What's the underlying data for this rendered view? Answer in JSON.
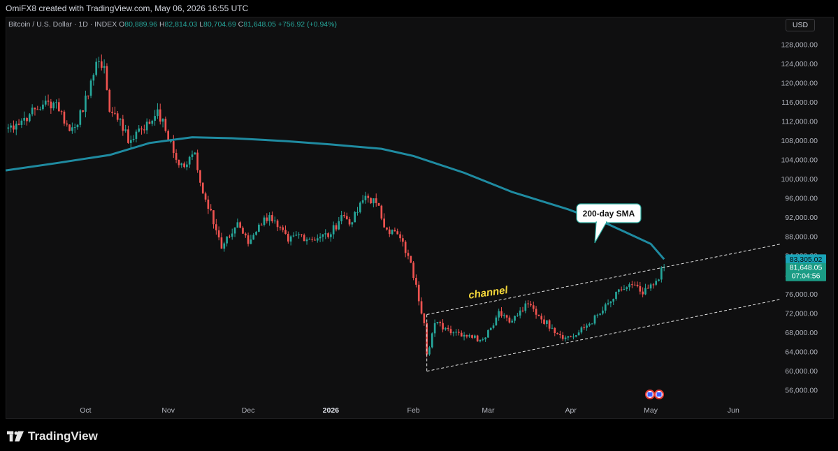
{
  "header": {
    "attribution": "OmiFX8 created with TradingView.com, May 06, 2026 16:55 UTC"
  },
  "legend": {
    "symbol": "Bitcoin / U.S. Dollar · 1D · INDEX",
    "o_label": "O",
    "o": "80,889.96",
    "h_label": "H",
    "h": "82,814.03",
    "l_label": "L",
    "l": "80,704.69",
    "c_label": "C",
    "c": "81,648.05",
    "change": "+756.92 (+0.94%)"
  },
  "currency": "USD",
  "price_tags": {
    "sma": "83,305.02",
    "last": "81,648.05",
    "countdown": "07:04:56"
  },
  "annotations": {
    "callout": "200-day SMA",
    "channel": "channel"
  },
  "brand": {
    "name": "TradingView"
  },
  "colors": {
    "up": "#26a69a",
    "down": "#ef5350",
    "sma": "#1f8ba1",
    "background": "#0f0f10",
    "channel_label": "#f0d43a"
  },
  "chart_data": {
    "type": "candlestick",
    "y_axis": {
      "ticks": [
        128000,
        124000,
        120000,
        116000,
        112000,
        108000,
        104000,
        100000,
        96000,
        92000,
        88000,
        84000,
        80000,
        76000,
        72000,
        68000,
        64000,
        60000,
        56000
      ],
      "tick_labels": [
        "128,000.00",
        "124,000.00",
        "120,000.00",
        "116,000.00",
        "112,000.00",
        "108,000.00",
        "104,000.00",
        "100,000.00",
        "96,000.00",
        "92,000.00",
        "88,000.00",
        "84,000.00",
        "80,000.00",
        "76,000.00",
        "72,000.00",
        "68,000.00",
        "64,000.00",
        "60,000.00",
        "56,000.00"
      ],
      "range": [
        54000,
        130000
      ]
    },
    "x_axis": {
      "range": [
        "2025-09-01",
        "2026-06-19"
      ],
      "ticks": [
        {
          "label": "Oct",
          "date": "2025-10-01",
          "bold": false
        },
        {
          "label": "Nov",
          "date": "2025-11-01",
          "bold": false
        },
        {
          "label": "Dec",
          "date": "2025-12-01",
          "bold": false
        },
        {
          "label": "2026",
          "date": "2026-01-01",
          "bold": true
        },
        {
          "label": "Feb",
          "date": "2026-02-01",
          "bold": false
        },
        {
          "label": "Mar",
          "date": "2026-03-01",
          "bold": false
        },
        {
          "label": "Apr",
          "date": "2026-04-01",
          "bold": false
        },
        {
          "label": "May",
          "date": "2026-05-01",
          "bold": false
        },
        {
          "label": "Jun",
          "date": "2026-06-01",
          "bold": false
        }
      ]
    },
    "price_anchors": [
      [
        "2025-09-01",
        110500
      ],
      [
        "2025-09-05",
        111500
      ],
      [
        "2025-09-10",
        113500
      ],
      [
        "2025-09-15",
        115500
      ],
      [
        "2025-09-20",
        116000
      ],
      [
        "2025-09-25",
        110000
      ],
      [
        "2025-09-30",
        114000
      ],
      [
        "2025-10-03",
        120500
      ],
      [
        "2025-10-06",
        124500
      ],
      [
        "2025-10-08",
        123500
      ],
      [
        "2025-10-10",
        114000
      ],
      [
        "2025-10-14",
        112500
      ],
      [
        "2025-10-17",
        107500
      ],
      [
        "2025-10-21",
        110500
      ],
      [
        "2025-10-25",
        111500
      ],
      [
        "2025-10-28",
        114500
      ],
      [
        "2025-10-31",
        110000
      ],
      [
        "2025-11-04",
        104000
      ],
      [
        "2025-11-07",
        102500
      ],
      [
        "2025-11-11",
        105500
      ],
      [
        "2025-11-14",
        97000
      ],
      [
        "2025-11-17",
        93500
      ],
      [
        "2025-11-21",
        85500
      ],
      [
        "2025-11-24",
        88000
      ],
      [
        "2025-11-27",
        91000
      ],
      [
        "2025-12-01",
        86500
      ],
      [
        "2025-12-05",
        90500
      ],
      [
        "2025-12-09",
        92500
      ],
      [
        "2025-12-12",
        90000
      ],
      [
        "2025-12-16",
        87000
      ],
      [
        "2025-12-20",
        88500
      ],
      [
        "2025-12-24",
        87500
      ],
      [
        "2025-12-28",
        88000
      ],
      [
        "2026-01-01",
        88500
      ],
      [
        "2026-01-05",
        92500
      ],
      [
        "2026-01-09",
        91000
      ],
      [
        "2026-01-14",
        96500
      ],
      [
        "2026-01-18",
        95000
      ],
      [
        "2026-01-22",
        89500
      ],
      [
        "2026-01-26",
        88500
      ],
      [
        "2026-01-30",
        84000
      ],
      [
        "2026-02-02",
        78000
      ],
      [
        "2026-02-05",
        70000
      ],
      [
        "2026-02-06",
        63500
      ],
      [
        "2026-02-09",
        70000
      ],
      [
        "2026-02-13",
        69000
      ],
      [
        "2026-02-18",
        68000
      ],
      [
        "2026-02-22",
        67500
      ],
      [
        "2026-02-26",
        66500
      ],
      [
        "2026-03-02",
        69000
      ],
      [
        "2026-03-05",
        72500
      ],
      [
        "2026-03-10",
        70500
      ],
      [
        "2026-03-16",
        74000
      ],
      [
        "2026-03-20",
        71500
      ],
      [
        "2026-03-25",
        69000
      ],
      [
        "2026-03-30",
        67000
      ],
      [
        "2026-04-03",
        67500
      ],
      [
        "2026-04-07",
        69500
      ],
      [
        "2026-04-12",
        72000
      ],
      [
        "2026-04-16",
        74500
      ],
      [
        "2026-04-20",
        77000
      ],
      [
        "2026-04-24",
        78000
      ],
      [
        "2026-04-28",
        76000
      ],
      [
        "2026-05-02",
        78000
      ],
      [
        "2026-05-06",
        81648
      ]
    ],
    "sma200": {
      "name": "200-day SMA",
      "points": [
        [
          "2025-09-01",
          101800
        ],
        [
          "2025-09-20",
          103300
        ],
        [
          "2025-10-10",
          105000
        ],
        [
          "2025-10-25",
          107500
        ],
        [
          "2025-11-10",
          108700
        ],
        [
          "2025-11-25",
          108500
        ],
        [
          "2025-12-15",
          107900
        ],
        [
          "2026-01-01",
          107200
        ],
        [
          "2026-01-20",
          106300
        ],
        [
          "2026-02-01",
          104800
        ],
        [
          "2026-02-20",
          101300
        ],
        [
          "2026-03-10",
          97300
        ],
        [
          "2026-03-31",
          93700
        ],
        [
          "2026-04-15",
          90600
        ],
        [
          "2026-05-01",
          86500
        ],
        [
          "2026-05-06",
          83305
        ]
      ]
    },
    "channel": {
      "upper": [
        [
          "2026-02-06",
          71800
        ],
        [
          "2026-06-19",
          86500
        ]
      ],
      "lower": [
        [
          "2026-02-06",
          60000
        ],
        [
          "2026-06-19",
          75000
        ]
      ]
    }
  }
}
